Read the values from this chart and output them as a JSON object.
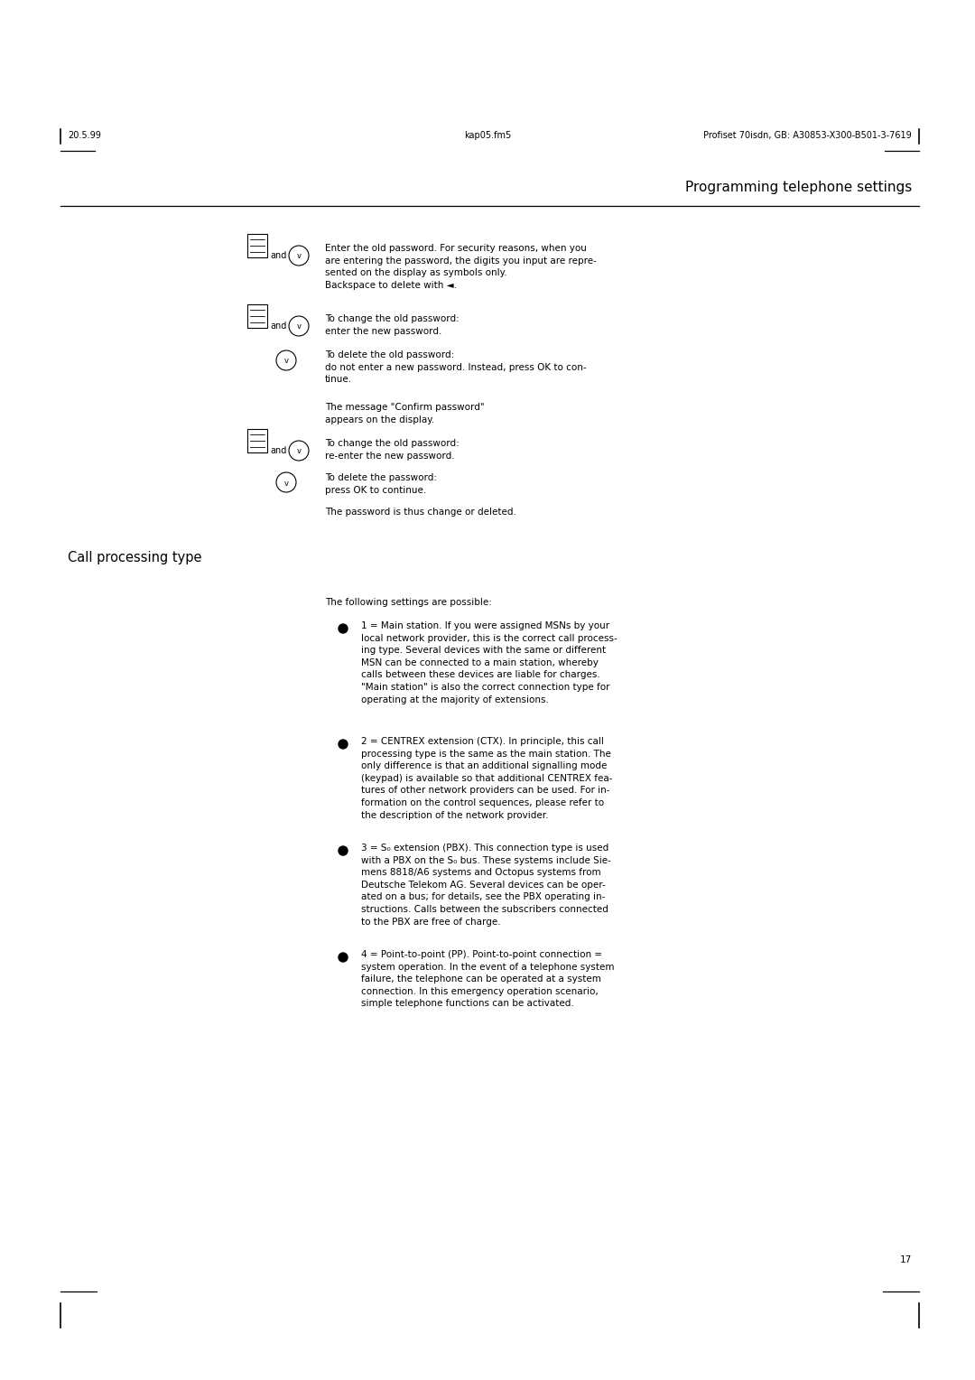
{
  "bg_color": "#ffffff",
  "text_color": "#000000",
  "page_width": 10.8,
  "page_height": 15.28,
  "header_left": "20.5.99",
  "header_center": "kap05.fm5",
  "header_right": "Profiset 70isdn, GB: A30853-X300-B501-3-7619",
  "page_number": "17",
  "chapter_title": "Programming telephone settings",
  "section_title": "Call processing type",
  "section_intro": "The following settings are possible:",
  "bullet_items": [
    "1 = Main station. If you were assigned MSNs by your\nlocal network provider, this is the correct call process-\ning type. Several devices with the same or different\nMSN can be connected to a main station, whereby\ncalls between these devices are liable for charges.\n\"Main station\" is also the correct connection type for\noperating at the majority of extensions.",
    "2 = CENTREX extension (CTX). In principle, this call\nprocessing type is the same as the main station. The\nonly difference is that an additional signalling mode\n(keypad) is available so that additional CENTREX fea-\ntures of other network providers can be used. For in-\nformation on the control sequences, please refer to\nthe description of the network provider.",
    "3 = S₀ extension (PBX). This connection type is used\nwith a PBX on the S₀ bus. These systems include Sie-\nmens 8818/A6 systems and Octopus systems from\nDeutsche Telekom AG. Several devices can be oper-\nated on a bus; for details, see the PBX operating in-\nstructions. Calls between the subscribers connected\nto the PBX are free of charge.",
    "4 = Point-to-point (PP). Point-to-point connection =\nsystem operation. In the event of a telephone system\nfailure, the telephone can be operated at a system\nconnection. In this emergency operation scenario,\nsimple telephone functions can be activated."
  ],
  "font_family": "DejaVu Sans",
  "font_size_body": 7.5,
  "font_size_header": 7.0,
  "font_size_chapter": 11.0,
  "font_size_section": 10.5
}
